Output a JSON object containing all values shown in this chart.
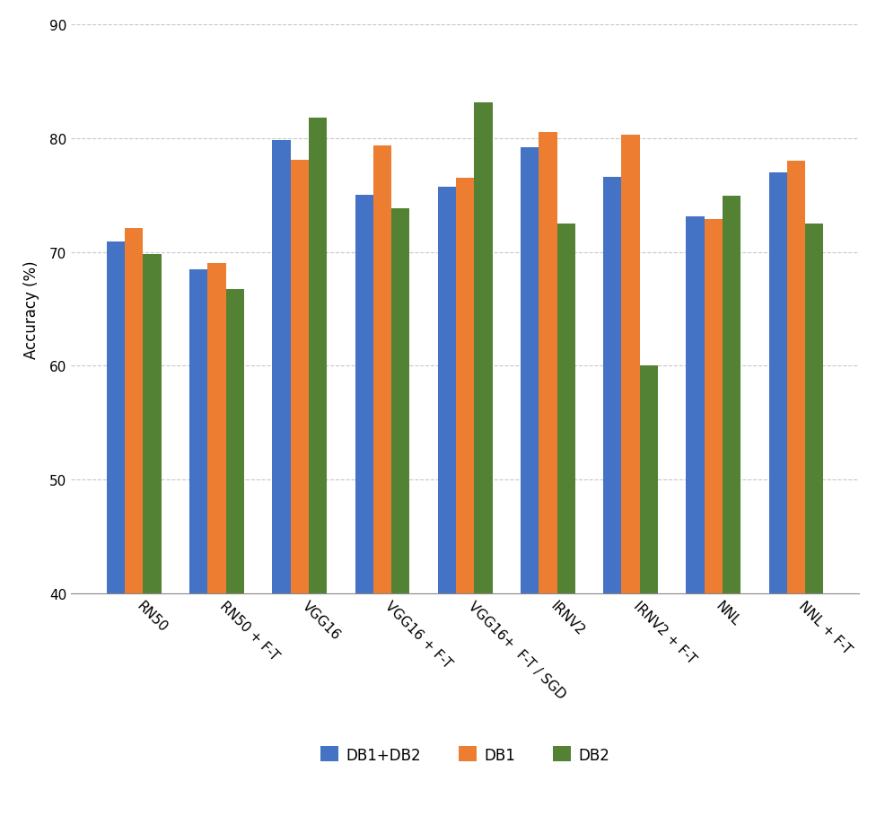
{
  "categories": [
    "RN50",
    "RN50 + F-T",
    "VGG16",
    "VGG16 + F-T",
    "VGG16+  F-T / SGD",
    "IRNV2",
    "IRNV2 + F-T",
    "NNL",
    "NNL + F-T"
  ],
  "series": {
    "DB1+DB2": [
      70.9,
      68.5,
      79.8,
      75.0,
      75.7,
      79.2,
      76.6,
      73.1,
      77.0
    ],
    "DB1": [
      72.1,
      69.0,
      78.1,
      79.3,
      76.5,
      80.5,
      80.3,
      72.9,
      78.0
    ],
    "DB2": [
      69.8,
      66.7,
      81.8,
      73.8,
      83.1,
      72.5,
      60.0,
      74.9,
      72.5
    ]
  },
  "colors": {
    "DB1+DB2": "#4472C4",
    "DB1": "#ED7D31",
    "DB2": "#548235"
  },
  "ylabel": "Accuracy (%)",
  "ylim": [
    40,
    90
  ],
  "yticks": [
    40,
    50,
    60,
    70,
    80,
    90
  ],
  "background_color": "#ffffff",
  "grid_color": "#c8c8c8",
  "bar_width": 0.22,
  "legend_labels": [
    "DB1+DB2",
    "DB1",
    "DB2"
  ]
}
